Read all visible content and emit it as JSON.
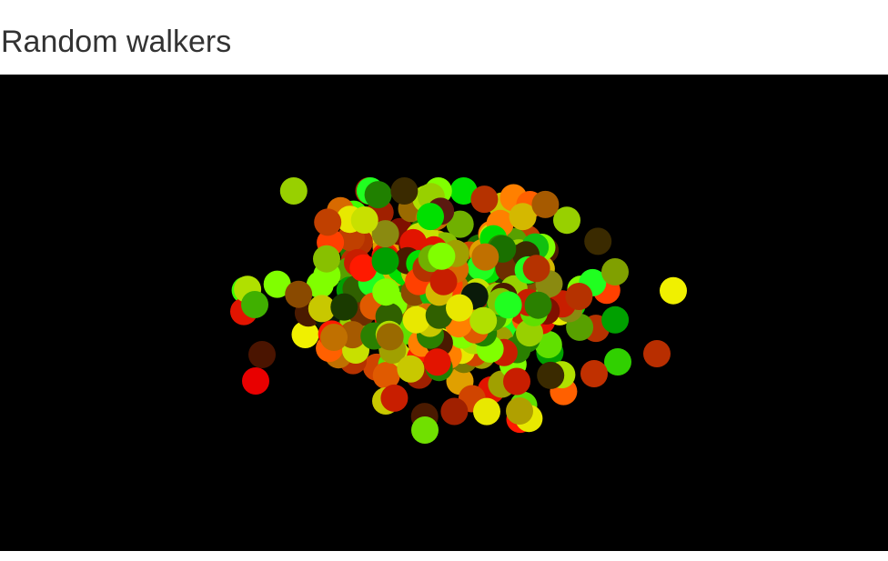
{
  "page": {
    "title": "Random walkers"
  },
  "canvas": {
    "background": "#000000"
  }
}
